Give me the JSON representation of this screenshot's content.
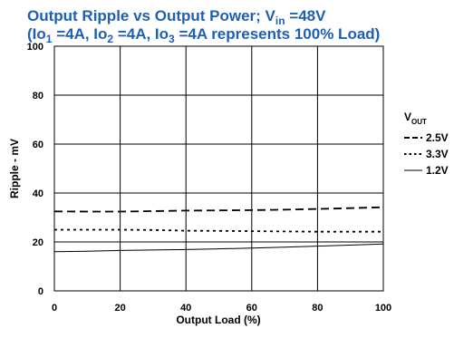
{
  "chart_data": {
    "type": "line",
    "title_line1_prefix": "Output Ripple vs Output Power; V",
    "title_line1_sub": "in",
    "title_line1_suffix": " =48V",
    "title_line2_parts": [
      {
        "text": "(Io",
        "sub": false
      },
      {
        "text": "1",
        "sub": true
      },
      {
        "text": " =4A, Io",
        "sub": false
      },
      {
        "text": "2",
        "sub": true
      },
      {
        "text": " =4A, Io",
        "sub": false
      },
      {
        "text": "3",
        "sub": true
      },
      {
        "text": " =4A represents 100% Load)",
        "sub": false
      }
    ],
    "xlabel": "Output Load  (%)",
    "ylabel": "Ripple - mV",
    "xlim": [
      0,
      100
    ],
    "ylim": [
      0,
      100
    ],
    "xticks": [
      0,
      20,
      40,
      60,
      80,
      100
    ],
    "yticks": [
      0,
      20,
      40,
      60,
      80,
      100
    ],
    "grid": true,
    "legend": {
      "title_main": "V",
      "title_sub": "OUT",
      "placement": "right"
    },
    "series": [
      {
        "name": "2.5V",
        "style": "dashed",
        "x": [
          0,
          10,
          20,
          30,
          40,
          50,
          60,
          70,
          80,
          90,
          100
        ],
        "y": [
          32.5,
          32.4,
          32.4,
          32.6,
          32.8,
          32.9,
          33.0,
          33.2,
          33.5,
          33.8,
          34.2
        ]
      },
      {
        "name": "3.3V",
        "style": "dotted",
        "x": [
          0,
          10,
          20,
          30,
          40,
          50,
          60,
          70,
          80,
          90,
          100
        ],
        "y": [
          25.0,
          25.0,
          25.0,
          24.9,
          24.6,
          24.5,
          24.4,
          24.3,
          24.2,
          24.2,
          24.2
        ]
      },
      {
        "name": "1.2V",
        "style": "solid",
        "x": [
          0,
          10,
          20,
          30,
          40,
          50,
          60,
          70,
          80,
          90,
          100
        ],
        "y": [
          16.0,
          16.2,
          16.5,
          16.7,
          16.9,
          17.2,
          17.5,
          17.9,
          18.3,
          18.7,
          19.2
        ]
      }
    ],
    "line_color": "#000000",
    "title_color": "#1f5fb2"
  }
}
